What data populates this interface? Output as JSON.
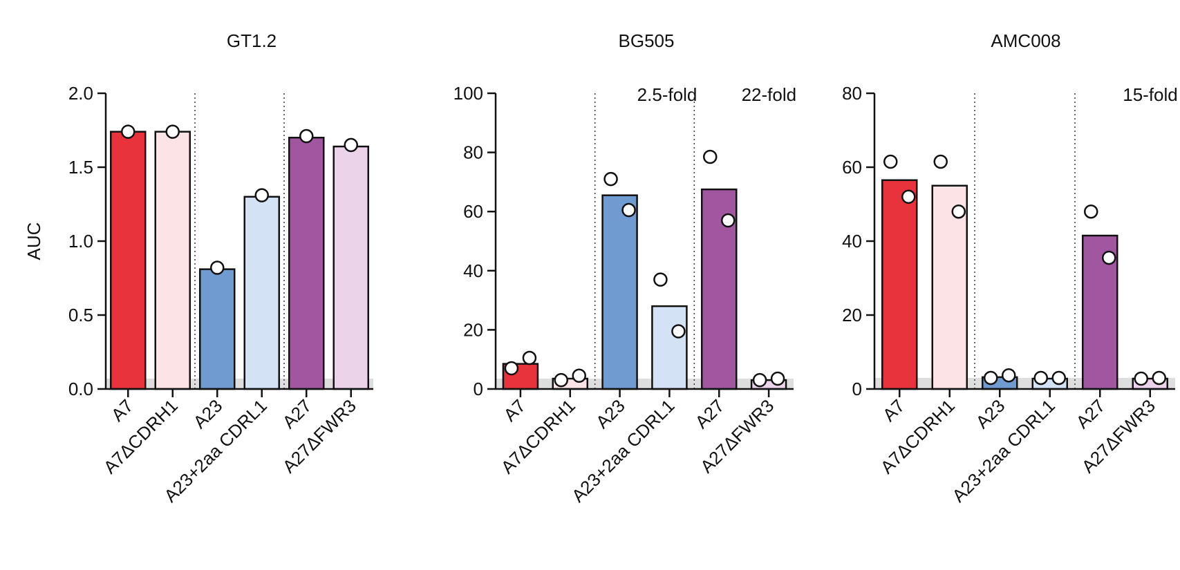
{
  "chart_data": [
    {
      "type": "bar",
      "title": "GT1.2",
      "ylabel": "AUC",
      "ylim": [
        0,
        2.0
      ],
      "yticks": [
        "0.0",
        "0.5",
        "1.0",
        "1.5",
        "2.0"
      ],
      "ytick_values": [
        0,
        0.5,
        1.0,
        1.5,
        2.0
      ],
      "baseline_band": 0.07,
      "categories": [
        "A7",
        "A7ΔCDRH1",
        "A23",
        "A23+2aa CDRL1",
        "A27",
        "A27ΔFWR3"
      ],
      "values": [
        1.74,
        1.74,
        0.81,
        1.3,
        1.7,
        1.64
      ],
      "points": [
        [
          1.74
        ],
        [
          1.74
        ],
        [
          0.82
        ],
        [
          1.31
        ],
        [
          1.71
        ],
        [
          1.65
        ]
      ],
      "annotations": [
        "",
        "",
        ""
      ]
    },
    {
      "type": "bar",
      "title": "BG505",
      "ylabel": "",
      "ylim": [
        0,
        100
      ],
      "yticks": [
        "0",
        "20",
        "40",
        "60",
        "80",
        "100"
      ],
      "ytick_values": [
        0,
        20,
        40,
        60,
        80,
        100
      ],
      "baseline_band": 3.5,
      "categories": [
        "A7",
        "A7ΔCDRH1",
        "A23",
        "A23+2aa CDRL1",
        "A27",
        "A27ΔFWR3"
      ],
      "values": [
        8.5,
        3.5,
        65.5,
        28,
        67.5,
        3
      ],
      "points": [
        [
          7,
          10.5
        ],
        [
          3,
          4.5
        ],
        [
          71,
          60.5
        ],
        [
          37,
          19.5
        ],
        [
          78.5,
          57
        ],
        [
          3,
          3.5
        ]
      ],
      "annotations": [
        "",
        "2.5-fold",
        "22-fold"
      ]
    },
    {
      "type": "bar",
      "title": "AMC008",
      "ylabel": "",
      "ylim": [
        0,
        80
      ],
      "yticks": [
        "0",
        "20",
        "40",
        "60",
        "80"
      ],
      "ytick_values": [
        0,
        20,
        40,
        60,
        80
      ],
      "baseline_band": 3,
      "categories": [
        "A7",
        "A7ΔCDRH1",
        "A23",
        "A23+2aa CDRL1",
        "A27",
        "A27ΔFWR3"
      ],
      "values": [
        56.5,
        55,
        3.2,
        2.8,
        41.5,
        2.8
      ],
      "points": [
        [
          61.5,
          52
        ],
        [
          61.5,
          48
        ],
        [
          3,
          3.7
        ],
        [
          3,
          3
        ],
        [
          48,
          35.5
        ],
        [
          2.8,
          3
        ]
      ],
      "annotations": [
        "",
        "",
        "15-fold"
      ]
    }
  ],
  "colors": {
    "fills": [
      "#e8333d",
      "#fce4e6",
      "#6f9bd1",
      "#d3e3f5",
      "#a0579f",
      "#ebd4ea"
    ],
    "band": "#dedede",
    "axis": "#111111"
  }
}
